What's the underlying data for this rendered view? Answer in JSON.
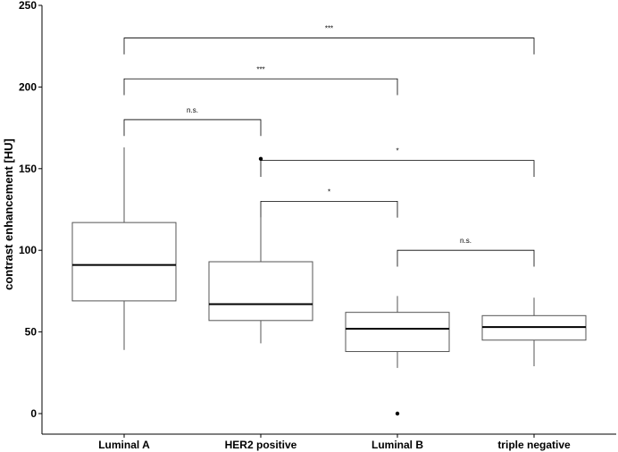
{
  "chart_data": {
    "type": "boxplot",
    "ylabel": "contrast enhancement [HU]",
    "xlabel": "",
    "ylim": [
      -12,
      250
    ],
    "yticks": [
      0,
      50,
      100,
      150,
      200,
      250
    ],
    "grid": false,
    "categories": [
      "Luminal A",
      "HER2 positive",
      "Luminal B",
      "triple negative"
    ],
    "boxes": [
      {
        "category": "Luminal A",
        "whisker_low": 39,
        "q1": 69,
        "median": 91,
        "q3": 117,
        "whisker_high": 163,
        "outliers": []
      },
      {
        "category": "HER2 positive",
        "whisker_low": 43,
        "q1": 57,
        "median": 67,
        "q3": 93,
        "whisker_high": 120,
        "outliers": [
          156
        ]
      },
      {
        "category": "Luminal B",
        "whisker_low": 28,
        "q1": 38,
        "median": 52,
        "q3": 62,
        "whisker_high": 72,
        "outliers": [
          0
        ]
      },
      {
        "category": "triple negative",
        "whisker_low": 29,
        "q1": 45,
        "median": 53,
        "q3": 60,
        "whisker_high": 71,
        "outliers": []
      }
    ],
    "comparisons": [
      {
        "from": 0,
        "to": 3,
        "y": 230,
        "label": "***"
      },
      {
        "from": 0,
        "to": 2,
        "y": 205,
        "label": "***"
      },
      {
        "from": 0,
        "to": 1,
        "y": 180,
        "label": "n.s."
      },
      {
        "from": 1,
        "to": 3,
        "y": 155,
        "label": "*"
      },
      {
        "from": 1,
        "to": 2,
        "y": 130,
        "label": "*"
      },
      {
        "from": 2,
        "to": 3,
        "y": 100,
        "label": "n.s."
      }
    ]
  }
}
